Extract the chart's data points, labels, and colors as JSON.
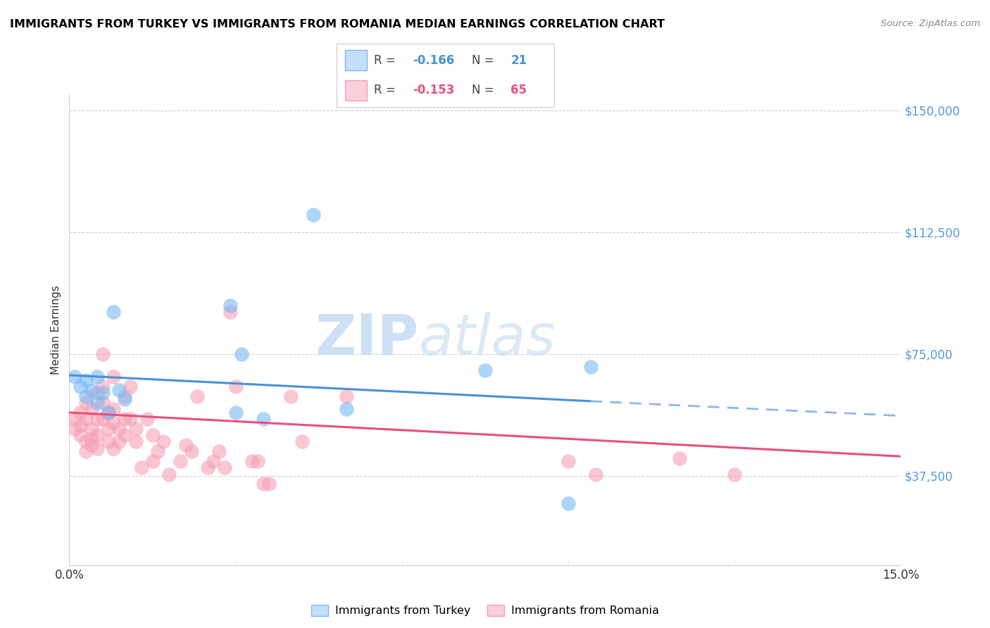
{
  "title": "IMMIGRANTS FROM TURKEY VS IMMIGRANTS FROM ROMANIA MEDIAN EARNINGS CORRELATION CHART",
  "source": "Source: ZipAtlas.com",
  "ylabel": "Median Earnings",
  "xmin": 0.0,
  "xmax": 0.15,
  "ymin": 10000,
  "ymax": 155000,
  "yticks": [
    37500,
    75000,
    112500,
    150000
  ],
  "ytick_labels": [
    "$37,500",
    "$75,000",
    "$112,500",
    "$150,000"
  ],
  "watermark_zip": "ZIP",
  "watermark_atlas": "atlas",
  "turkey_color": "#7ab8f5",
  "romania_color": "#f5a0b5",
  "turkey_R": "-0.166",
  "turkey_N": "21",
  "romania_R": "-0.153",
  "romania_N": "65",
  "turkey_points": [
    [
      0.001,
      68000
    ],
    [
      0.002,
      65000
    ],
    [
      0.003,
      67000
    ],
    [
      0.003,
      62000
    ],
    [
      0.004,
      64000
    ],
    [
      0.005,
      68000
    ],
    [
      0.005,
      60000
    ],
    [
      0.006,
      63000
    ],
    [
      0.007,
      57000
    ],
    [
      0.008,
      88000
    ],
    [
      0.009,
      64000
    ],
    [
      0.01,
      61000
    ],
    [
      0.029,
      90000
    ],
    [
      0.03,
      57000
    ],
    [
      0.031,
      75000
    ],
    [
      0.035,
      55000
    ],
    [
      0.044,
      118000
    ],
    [
      0.05,
      58000
    ],
    [
      0.075,
      70000
    ],
    [
      0.094,
      71000
    ],
    [
      0.09,
      29000
    ]
  ],
  "romania_points": [
    [
      0.001,
      52000
    ],
    [
      0.001,
      55000
    ],
    [
      0.002,
      57000
    ],
    [
      0.002,
      53000
    ],
    [
      0.002,
      50000
    ],
    [
      0.003,
      60000
    ],
    [
      0.003,
      55000
    ],
    [
      0.003,
      48000
    ],
    [
      0.003,
      45000
    ],
    [
      0.004,
      58000
    ],
    [
      0.004,
      52000
    ],
    [
      0.004,
      49000
    ],
    [
      0.004,
      47000
    ],
    [
      0.005,
      63000
    ],
    [
      0.005,
      55000
    ],
    [
      0.005,
      50000
    ],
    [
      0.005,
      46000
    ],
    [
      0.006,
      75000
    ],
    [
      0.006,
      65000
    ],
    [
      0.006,
      60000
    ],
    [
      0.006,
      55000
    ],
    [
      0.007,
      57000
    ],
    [
      0.007,
      52000
    ],
    [
      0.007,
      48000
    ],
    [
      0.008,
      68000
    ],
    [
      0.008,
      58000
    ],
    [
      0.008,
      54000
    ],
    [
      0.008,
      46000
    ],
    [
      0.009,
      52000
    ],
    [
      0.009,
      48000
    ],
    [
      0.01,
      62000
    ],
    [
      0.01,
      55000
    ],
    [
      0.01,
      50000
    ],
    [
      0.011,
      65000
    ],
    [
      0.011,
      55000
    ],
    [
      0.012,
      52000
    ],
    [
      0.012,
      48000
    ],
    [
      0.013,
      40000
    ],
    [
      0.014,
      55000
    ],
    [
      0.015,
      50000
    ],
    [
      0.015,
      42000
    ],
    [
      0.016,
      45000
    ],
    [
      0.017,
      48000
    ],
    [
      0.018,
      38000
    ],
    [
      0.02,
      42000
    ],
    [
      0.021,
      47000
    ],
    [
      0.022,
      45000
    ],
    [
      0.023,
      62000
    ],
    [
      0.025,
      40000
    ],
    [
      0.026,
      42000
    ],
    [
      0.027,
      45000
    ],
    [
      0.028,
      40000
    ],
    [
      0.029,
      88000
    ],
    [
      0.03,
      65000
    ],
    [
      0.033,
      42000
    ],
    [
      0.034,
      42000
    ],
    [
      0.035,
      35000
    ],
    [
      0.036,
      35000
    ],
    [
      0.04,
      62000
    ],
    [
      0.042,
      48000
    ],
    [
      0.05,
      62000
    ],
    [
      0.09,
      42000
    ],
    [
      0.095,
      38000
    ],
    [
      0.11,
      43000
    ],
    [
      0.12,
      38000
    ]
  ],
  "turkey_line_solid": {
    "x0": 0.0,
    "y0": 68500,
    "x1": 0.094,
    "y1": 60500
  },
  "turkey_line_dashed": {
    "x0": 0.094,
    "y0": 60500,
    "x1": 0.15,
    "y1": 56000
  },
  "romania_line": {
    "x0": 0.0,
    "y0": 57000,
    "x1": 0.15,
    "y1": 43500
  }
}
